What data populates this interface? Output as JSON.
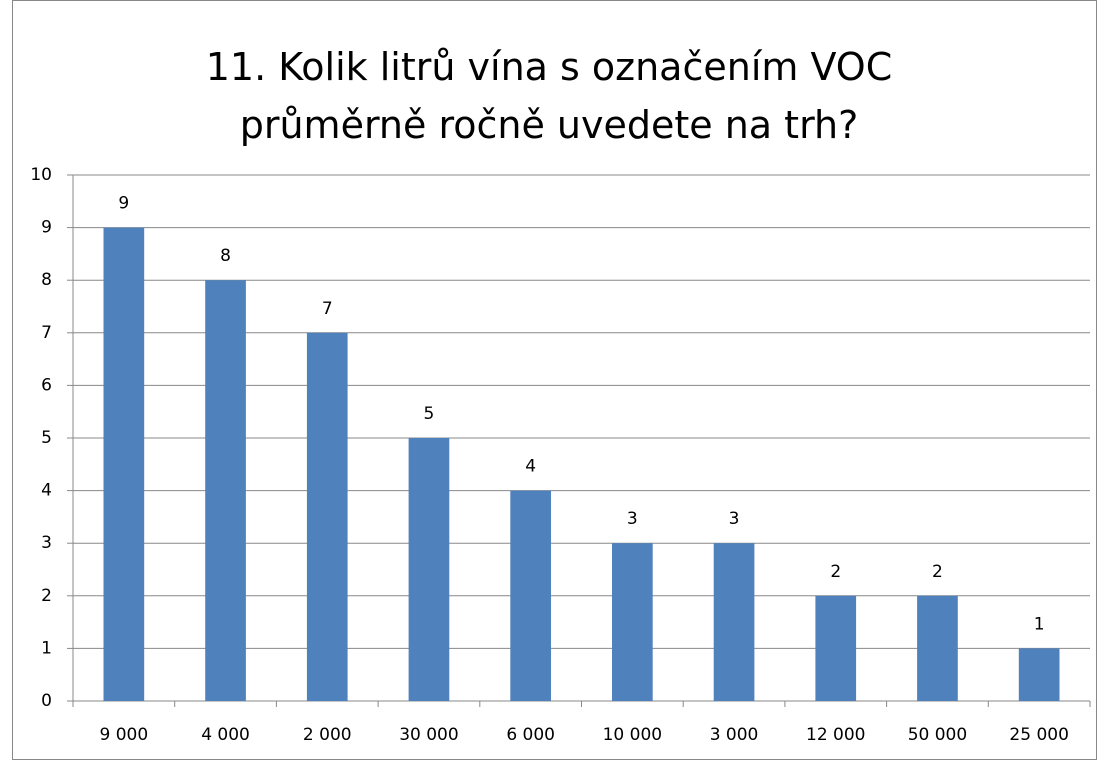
{
  "chart_data": {
    "type": "bar",
    "title": "11. Kolik litrů vína s označením VOC průměrně ročně uvedete na trh?",
    "categories": [
      "9 000",
      "4 000",
      "2 000",
      "30 000",
      "6 000",
      "10 000",
      "3 000",
      "12 000",
      "50 000",
      "25 000"
    ],
    "values": [
      9,
      8,
      7,
      5,
      4,
      3,
      3,
      2,
      2,
      1
    ],
    "color": "#4f81bd",
    "ylim": [
      0,
      10
    ],
    "yticks": [
      0,
      1,
      2,
      3,
      4,
      5,
      6,
      7,
      8,
      9,
      10
    ],
    "grid": true
  }
}
